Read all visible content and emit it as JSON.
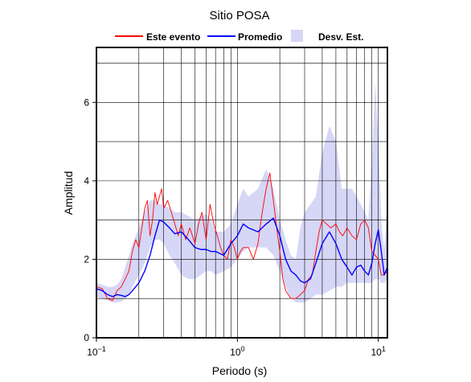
{
  "chart_data": {
    "type": "line",
    "title": "Sitio POSA",
    "xlabel": "Periodo (s)",
    "ylabel": "Amplitud",
    "xscale": "log",
    "xlim": [
      0.1,
      11.6
    ],
    "ylim": [
      0,
      7.4
    ],
    "grid": true,
    "legend_position": "top",
    "x_tick_labels": [
      {
        "value": 0.1,
        "base": "10",
        "exp": "−1"
      },
      {
        "value": 1,
        "base": "10",
        "exp": "0"
      },
      {
        "value": 10,
        "base": "10",
        "exp": "1"
      }
    ],
    "y_ticks": [
      0,
      2,
      4,
      6
    ],
    "legend": [
      {
        "label": "Este evento",
        "kind": "line",
        "color": "#ff0000"
      },
      {
        "label": "Promedio",
        "kind": "line",
        "color": "#0000ff"
      },
      {
        "label": "Desv. Est.",
        "kind": "band",
        "color": "#d6d6f7"
      }
    ],
    "band": {
      "name": "Desv. Est.",
      "color": "#d6d6f7",
      "x": [
        0.1,
        0.11,
        0.12,
        0.13,
        0.14,
        0.15,
        0.16,
        0.17,
        0.18,
        0.2,
        0.22,
        0.24,
        0.26,
        0.28,
        0.3,
        0.33,
        0.36,
        0.4,
        0.45,
        0.5,
        0.55,
        0.6,
        0.65,
        0.7,
        0.8,
        0.9,
        1.0,
        1.1,
        1.2,
        1.4,
        1.6,
        1.8,
        2.0,
        2.2,
        2.4,
        2.6,
        2.8,
        3.0,
        3.3,
        3.6,
        4.0,
        4.5,
        5.0,
        5.5,
        6.0,
        6.5,
        7.0,
        7.5,
        8.0,
        8.5,
        9.0,
        9.5,
        10.0,
        10.5,
        11.0,
        11.6
      ],
      "upper": [
        1.4,
        1.35,
        1.3,
        1.3,
        1.35,
        1.5,
        1.8,
        2.1,
        2.4,
        2.8,
        3.2,
        3.5,
        3.5,
        3.4,
        3.4,
        3.3,
        3.2,
        3.2,
        3.1,
        3.0,
        3.1,
        3.15,
        3.0,
        2.7,
        2.7,
        2.9,
        3.4,
        3.8,
        3.6,
        3.8,
        4.3,
        3.8,
        3.0,
        2.5,
        2.1,
        2.0,
        2.8,
        3.2,
        3.4,
        3.6,
        4.7,
        5.4,
        5.0,
        3.8,
        3.8,
        3.8,
        3.6,
        3.4,
        3.2,
        3.0,
        4.5,
        6.5,
        5.0,
        3.0,
        2.2,
        3.5
      ],
      "lower": [
        1.05,
        1.0,
        0.95,
        0.9,
        0.9,
        0.92,
        1.0,
        1.1,
        1.3,
        1.6,
        1.9,
        2.3,
        2.5,
        2.5,
        2.4,
        2.1,
        1.9,
        1.6,
        1.5,
        1.5,
        1.6,
        1.7,
        1.7,
        1.6,
        1.7,
        1.8,
        2.0,
        2.2,
        2.3,
        2.3,
        2.3,
        2.1,
        1.7,
        1.3,
        1.0,
        0.9,
        0.9,
        0.9,
        1.0,
        1.1,
        1.1,
        1.2,
        1.3,
        1.3,
        1.4,
        1.4,
        1.4,
        1.4,
        1.4,
        1.4,
        1.4,
        1.5,
        1.5,
        1.4,
        1.4,
        1.5
      ]
    },
    "series": [
      {
        "name": "Promedio",
        "color": "#0000ff",
        "x": [
          0.1,
          0.11,
          0.12,
          0.13,
          0.14,
          0.15,
          0.16,
          0.17,
          0.18,
          0.2,
          0.22,
          0.24,
          0.26,
          0.28,
          0.3,
          0.33,
          0.36,
          0.4,
          0.45,
          0.5,
          0.55,
          0.6,
          0.65,
          0.7,
          0.8,
          0.9,
          1.0,
          1.1,
          1.2,
          1.4,
          1.6,
          1.8,
          2.0,
          2.2,
          2.4,
          2.6,
          2.8,
          3.0,
          3.3,
          3.6,
          4.0,
          4.5,
          5.0,
          5.5,
          6.0,
          6.5,
          7.0,
          7.5,
          8.0,
          8.5,
          9.0,
          9.5,
          10.0,
          10.5,
          11.0,
          11.6
        ],
        "values": [
          1.25,
          1.2,
          1.1,
          1.05,
          1.1,
          1.08,
          1.05,
          1.1,
          1.2,
          1.4,
          1.7,
          2.1,
          2.6,
          3.0,
          2.95,
          2.8,
          2.65,
          2.7,
          2.5,
          2.3,
          2.25,
          2.25,
          2.2,
          2.2,
          2.1,
          2.4,
          2.6,
          2.9,
          2.8,
          2.7,
          2.9,
          3.05,
          2.6,
          2.0,
          1.7,
          1.6,
          1.45,
          1.4,
          1.5,
          1.9,
          2.4,
          2.7,
          2.4,
          2.0,
          1.8,
          1.6,
          1.8,
          1.85,
          1.7,
          1.6,
          1.9,
          2.4,
          2.75,
          2.2,
          1.6,
          1.8
        ]
      },
      {
        "name": "Este evento",
        "color": "#ff0000",
        "x": [
          0.1,
          0.11,
          0.12,
          0.13,
          0.14,
          0.15,
          0.16,
          0.17,
          0.18,
          0.19,
          0.2,
          0.21,
          0.22,
          0.23,
          0.24,
          0.25,
          0.26,
          0.27,
          0.28,
          0.29,
          0.3,
          0.32,
          0.34,
          0.36,
          0.38,
          0.4,
          0.43,
          0.46,
          0.5,
          0.53,
          0.56,
          0.6,
          0.64,
          0.68,
          0.72,
          0.76,
          0.8,
          0.85,
          0.9,
          0.95,
          1.0,
          1.05,
          1.1,
          1.2,
          1.3,
          1.4,
          1.5,
          1.6,
          1.7,
          1.8,
          1.9,
          2.0,
          2.1,
          2.2,
          2.4,
          2.6,
          2.8,
          3.0,
          3.2,
          3.4,
          3.6,
          3.8,
          4.0,
          4.3,
          4.6,
          5.0,
          5.3,
          5.6,
          6.0,
          6.5,
          7.0,
          7.5,
          8.0,
          8.5,
          9.0,
          9.5,
          10.0,
          10.5,
          11.0,
          11.6
        ],
        "values": [
          1.3,
          1.25,
          1.0,
          0.95,
          1.2,
          1.3,
          1.5,
          1.7,
          2.2,
          2.5,
          2.3,
          2.8,
          3.3,
          3.5,
          2.6,
          3.0,
          3.7,
          3.4,
          3.6,
          3.8,
          3.3,
          3.5,
          3.2,
          2.9,
          2.6,
          2.9,
          2.5,
          2.8,
          2.4,
          2.9,
          3.2,
          2.5,
          3.4,
          2.9,
          2.6,
          2.3,
          2.1,
          2.0,
          2.5,
          2.3,
          2.0,
          2.2,
          2.3,
          2.3,
          2.0,
          2.4,
          3.2,
          3.8,
          4.2,
          3.5,
          2.8,
          2.2,
          1.5,
          1.2,
          1.0,
          1.0,
          1.1,
          1.2,
          1.5,
          1.6,
          2.2,
          2.7,
          3.0,
          2.9,
          2.8,
          2.9,
          2.7,
          2.6,
          2.8,
          2.6,
          2.5,
          2.9,
          3.0,
          2.8,
          2.2,
          2.1,
          2.0,
          1.6,
          1.6,
          1.7
        ]
      }
    ]
  }
}
